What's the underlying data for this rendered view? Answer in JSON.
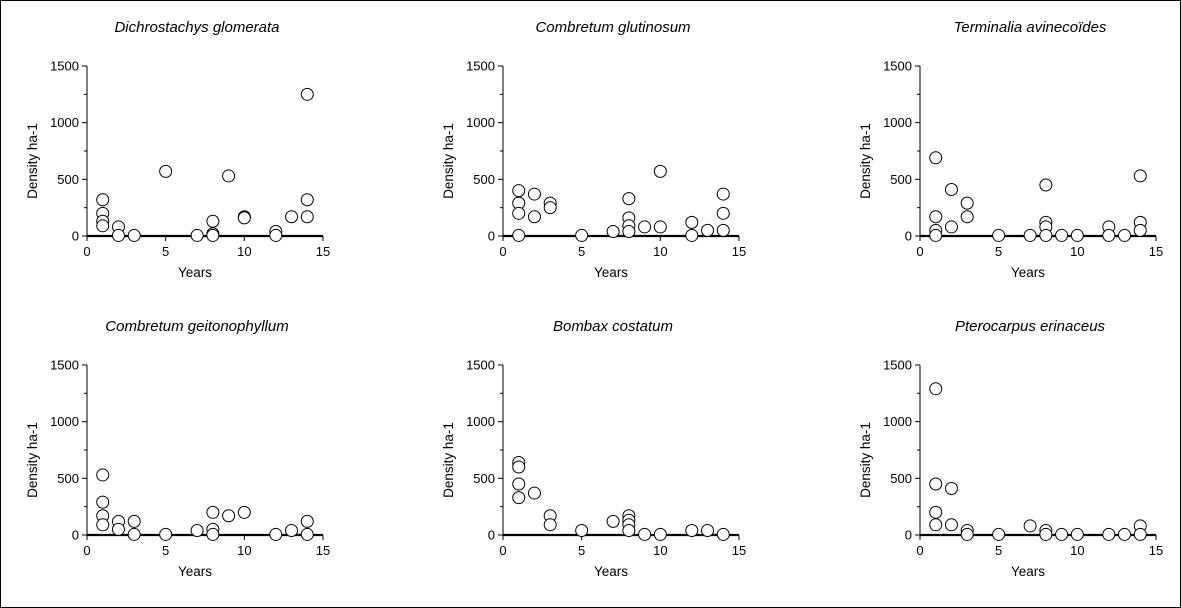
{
  "chart_data": [
    {
      "type": "scatter",
      "title": "Dichrostachys glomerata",
      "xlabel": "Years",
      "ylabel": "Density ha-1",
      "xlim": [
        0,
        15
      ],
      "ylim": [
        0,
        1500
      ],
      "xticks": [
        "0",
        "5",
        "10",
        "15"
      ],
      "yticks": [
        "0",
        "500",
        "1000",
        "1500"
      ],
      "grid": false,
      "points": [
        [
          1,
          320
        ],
        [
          1,
          200
        ],
        [
          1,
          130
        ],
        [
          1,
          90
        ],
        [
          2,
          80
        ],
        [
          2,
          5
        ],
        [
          3,
          5
        ],
        [
          5,
          570
        ],
        [
          7,
          5
        ],
        [
          8,
          130
        ],
        [
          8,
          20
        ],
        [
          8,
          5
        ],
        [
          9,
          530
        ],
        [
          10,
          170
        ],
        [
          10,
          160
        ],
        [
          12,
          40
        ],
        [
          12,
          5
        ],
        [
          13,
          170
        ],
        [
          14,
          1250
        ],
        [
          14,
          320
        ],
        [
          14,
          170
        ]
      ]
    },
    {
      "type": "scatter",
      "title": "Combretum glutinosum",
      "xlabel": "Years",
      "ylabel": "Density ha-1",
      "xlim": [
        0,
        15
      ],
      "ylim": [
        0,
        1500
      ],
      "xticks": [
        "0",
        "5",
        "10",
        "15"
      ],
      "yticks": [
        "0",
        "500",
        "1000",
        "1500"
      ],
      "grid": false,
      "points": [
        [
          1,
          400
        ],
        [
          1,
          290
        ],
        [
          1,
          200
        ],
        [
          1,
          5
        ],
        [
          2,
          370
        ],
        [
          2,
          170
        ],
        [
          3,
          290
        ],
        [
          3,
          250
        ],
        [
          5,
          5
        ],
        [
          7,
          40
        ],
        [
          8,
          330
        ],
        [
          8,
          160
        ],
        [
          8,
          90
        ],
        [
          8,
          40
        ],
        [
          9,
          80
        ],
        [
          10,
          570
        ],
        [
          10,
          80
        ],
        [
          12,
          120
        ],
        [
          12,
          5
        ],
        [
          13,
          50
        ],
        [
          14,
          370
        ],
        [
          14,
          200
        ],
        [
          14,
          50
        ]
      ]
    },
    {
      "type": "scatter",
      "title": "Terminalia avinecoïdes",
      "xlabel": "Years",
      "ylabel": "Density ha-1",
      "xlim": [
        0,
        15
      ],
      "ylim": [
        0,
        1500
      ],
      "xticks": [
        "0",
        "5",
        "10",
        "15"
      ],
      "yticks": [
        "0",
        "500",
        "1000",
        "1500"
      ],
      "grid": false,
      "points": [
        [
          1,
          690
        ],
        [
          1,
          170
        ],
        [
          1,
          50
        ],
        [
          1,
          5
        ],
        [
          2,
          410
        ],
        [
          2,
          80
        ],
        [
          3,
          290
        ],
        [
          3,
          170
        ],
        [
          5,
          5
        ],
        [
          7,
          5
        ],
        [
          8,
          450
        ],
        [
          8,
          120
        ],
        [
          8,
          80
        ],
        [
          8,
          5
        ],
        [
          9,
          5
        ],
        [
          10,
          5
        ],
        [
          12,
          80
        ],
        [
          12,
          5
        ],
        [
          13,
          5
        ],
        [
          14,
          530
        ],
        [
          14,
          120
        ],
        [
          14,
          50
        ]
      ]
    },
    {
      "type": "scatter",
      "title": "Combretum geitonophyllum",
      "xlabel": "Years",
      "ylabel": "Density ha-1",
      "xlim": [
        0,
        15
      ],
      "ylim": [
        0,
        1500
      ],
      "xticks": [
        "0",
        "5",
        "10",
        "15"
      ],
      "yticks": [
        "0",
        "500",
        "1000",
        "1500"
      ],
      "grid": false,
      "points": [
        [
          1,
          530
        ],
        [
          1,
          290
        ],
        [
          1,
          170
        ],
        [
          1,
          90
        ],
        [
          2,
          120
        ],
        [
          2,
          50
        ],
        [
          3,
          120
        ],
        [
          3,
          5
        ],
        [
          5,
          5
        ],
        [
          7,
          40
        ],
        [
          8,
          200
        ],
        [
          8,
          50
        ],
        [
          8,
          5
        ],
        [
          9,
          170
        ],
        [
          10,
          200
        ],
        [
          12,
          5
        ],
        [
          13,
          40
        ],
        [
          14,
          120
        ],
        [
          14,
          5
        ]
      ]
    },
    {
      "type": "scatter",
      "title": "Bombax costatum",
      "xlabel": "Years",
      "ylabel": "Density ha-1",
      "xlim": [
        0,
        15
      ],
      "ylim": [
        0,
        1500
      ],
      "xticks": [
        "0",
        "5",
        "10",
        "15"
      ],
      "yticks": [
        "0",
        "500",
        "1000",
        "1500"
      ],
      "grid": false,
      "points": [
        [
          1,
          640
        ],
        [
          1,
          600
        ],
        [
          1,
          450
        ],
        [
          1,
          330
        ],
        [
          2,
          370
        ],
        [
          3,
          170
        ],
        [
          3,
          90
        ],
        [
          5,
          40
        ],
        [
          7,
          120
        ],
        [
          8,
          170
        ],
        [
          8,
          130
        ],
        [
          8,
          90
        ],
        [
          8,
          40
        ],
        [
          9,
          5
        ],
        [
          10,
          5
        ],
        [
          12,
          40
        ],
        [
          13,
          40
        ],
        [
          14,
          5
        ]
      ]
    },
    {
      "type": "scatter",
      "title": "Pterocarpus erinaceus",
      "xlabel": "Years",
      "ylabel": "Density ha-1",
      "xlim": [
        0,
        15
      ],
      "ylim": [
        0,
        1500
      ],
      "xticks": [
        "0",
        "5",
        "10",
        "15"
      ],
      "yticks": [
        "0",
        "500",
        "1000",
        "1500"
      ],
      "grid": false,
      "points": [
        [
          1,
          1290
        ],
        [
          1,
          450
        ],
        [
          1,
          200
        ],
        [
          1,
          90
        ],
        [
          2,
          410
        ],
        [
          2,
          90
        ],
        [
          3,
          40
        ],
        [
          3,
          5
        ],
        [
          5,
          5
        ],
        [
          7,
          80
        ],
        [
          8,
          40
        ],
        [
          8,
          5
        ],
        [
          9,
          5
        ],
        [
          10,
          5
        ],
        [
          12,
          5
        ],
        [
          13,
          5
        ],
        [
          14,
          80
        ],
        [
          14,
          5
        ]
      ]
    }
  ]
}
